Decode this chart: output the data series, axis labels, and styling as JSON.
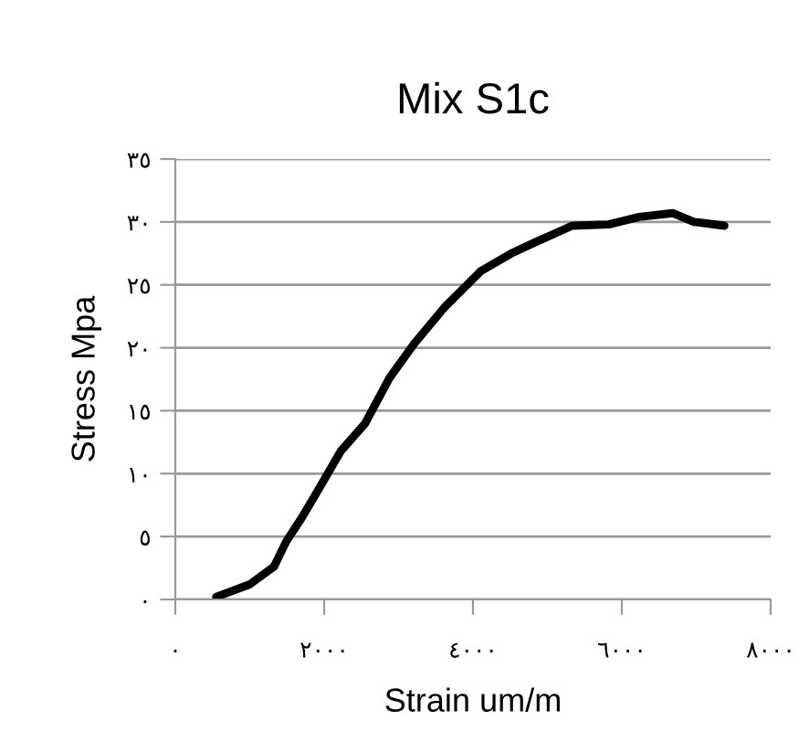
{
  "chart_data": {
    "type": "line",
    "title": "Mix S1c",
    "xlabel": "Strain um/m",
    "ylabel": "Stress Mpa",
    "series": [
      {
        "color": "#000000",
        "x": [
          550,
          1000,
          1325,
          1490,
          1700,
          1900,
          2225,
          2552,
          2878,
          3207,
          3615,
          4106,
          4515,
          4842,
          5333,
          5824,
          6233,
          6683,
          6970,
          7378
        ],
        "values": [
          0.2,
          1.2,
          2.6,
          4.6,
          6.5,
          8.5,
          11.8,
          14.0,
          17.6,
          20.3,
          23.2,
          26.1,
          27.5,
          28.4,
          29.7,
          29.8,
          30.4,
          30.7,
          30.0,
          29.7
        ]
      }
    ],
    "xlim": [
      0,
      8000
    ],
    "ylim": [
      0,
      35
    ],
    "xticks": [
      {
        "value": 0,
        "label": "٠"
      },
      {
        "value": 2000,
        "label": "٢٠٠٠"
      },
      {
        "value": 4000,
        "label": "٤٠٠٠"
      },
      {
        "value": 6000,
        "label": "٦٠٠٠"
      },
      {
        "value": 8000,
        "label": "٨٠٠٠"
      }
    ],
    "yticks": [
      {
        "value": 0,
        "label": "٠"
      },
      {
        "value": 5,
        "label": "٥"
      },
      {
        "value": 10,
        "label": "١٠"
      },
      {
        "value": 15,
        "label": "١٥"
      },
      {
        "value": 20,
        "label": "٢٠"
      },
      {
        "value": 25,
        "label": "٢٥"
      },
      {
        "value": 30,
        "label": "٣٠"
      },
      {
        "value": 35,
        "label": "٣٥"
      }
    ],
    "grid": "y",
    "marker": "none",
    "line_style": "solid",
    "legend": false
  }
}
